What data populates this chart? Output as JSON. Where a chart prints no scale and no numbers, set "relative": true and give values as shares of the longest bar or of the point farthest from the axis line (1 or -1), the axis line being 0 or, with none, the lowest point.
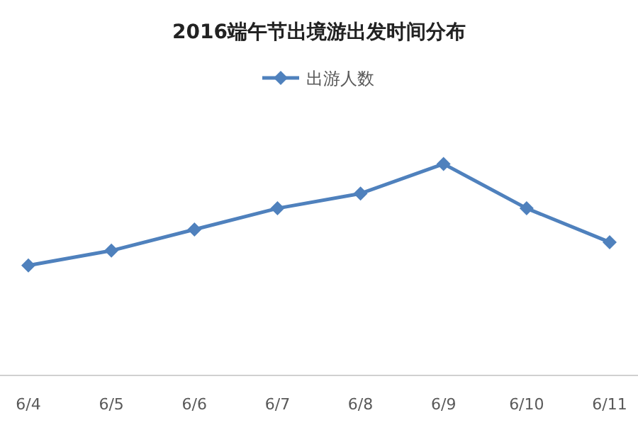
{
  "chart_data": {
    "type": "line",
    "title": "2016端午节出境游出发时间分布",
    "relative": true,
    "legend": "top",
    "marker": "diamond",
    "line_style": "solid",
    "categories": [
      "6/4",
      "6/5",
      "6/6",
      "6/7",
      "6/8",
      "6/9",
      "6/10",
      "6/11"
    ],
    "series": [
      {
        "name": "出游人数",
        "color": "#4f81bd",
        "values": [
          0.52,
          0.59,
          0.69,
          0.79,
          0.86,
          1,
          0.79,
          0.63
        ]
      }
    ]
  }
}
